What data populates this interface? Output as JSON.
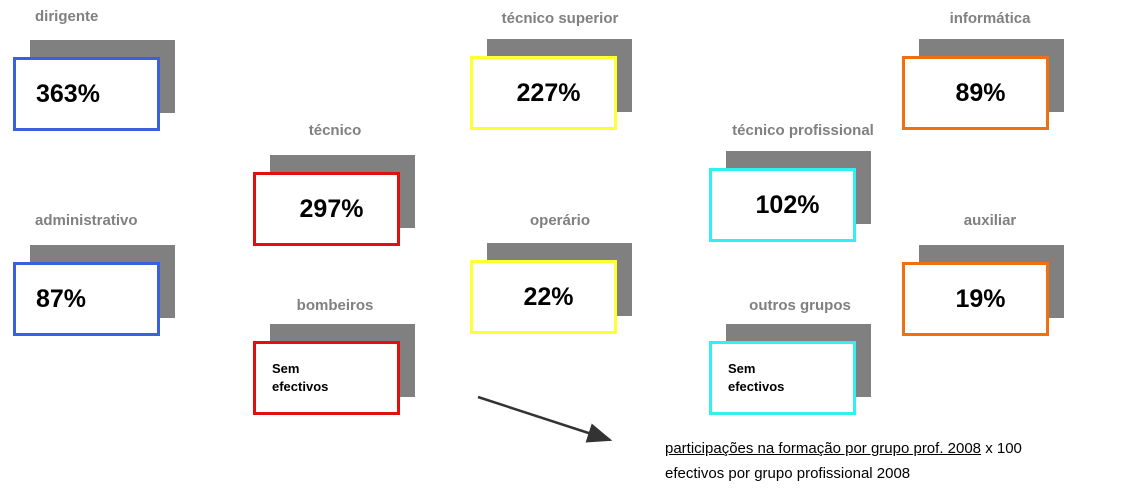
{
  "cards": [
    {
      "label": "dirigente",
      "value": "363%",
      "color": "#3a5fe0"
    },
    {
      "label": "técnico superior",
      "value": "227%",
      "color": "#ffff33"
    },
    {
      "label": "informática",
      "value": "89%",
      "color": "#f07010"
    },
    {
      "label": "técnico",
      "value": "297%",
      "color": "#e01010"
    },
    {
      "label": "técnico profissional",
      "value": "102%",
      "color": "#33f0f0"
    },
    {
      "label": "administrativo",
      "value": "87%",
      "color": "#3a5fe0"
    },
    {
      "label": "operário",
      "value": "22%",
      "color": "#ffff33"
    },
    {
      "label": "auxiliar",
      "value": "19%",
      "color": "#f07010"
    },
    {
      "label": "bombeiros",
      "value": "Sem efectivos",
      "color": "#e01010"
    },
    {
      "label": "outros grupos",
      "value": "Sem efectivos",
      "color": "#33f0f0"
    }
  ],
  "formula": {
    "numerator": "participações na formação por grupo prof. 2008",
    "factor": "x 100",
    "denominator": "efectivos por grupo profissional 2008"
  }
}
